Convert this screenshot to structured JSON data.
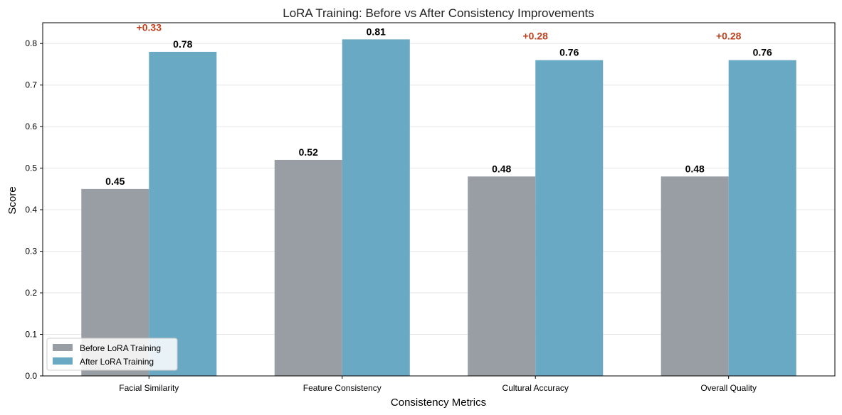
{
  "chart_data": {
    "type": "bar",
    "title": "LoRA Training: Before vs After Consistency Improvements",
    "xlabel": "Consistency Metrics",
    "ylabel": "Score",
    "ylim": [
      0,
      0.85
    ],
    "yticks": [
      0.0,
      0.1,
      0.2,
      0.3,
      0.4,
      0.5,
      0.6,
      0.7,
      0.8
    ],
    "categories": [
      "Facial Similarity",
      "Feature Consistency",
      "Cultural Accuracy",
      "Overall Quality"
    ],
    "series": [
      {
        "name": "Before LoRA Training",
        "color": "#999da4",
        "values": [
          0.45,
          0.52,
          0.48,
          0.48
        ],
        "labels": [
          "0.45",
          "0.52",
          "0.48",
          "0.48"
        ]
      },
      {
        "name": "After LoRA Training",
        "color": "#6aa9c3",
        "values": [
          0.78,
          0.81,
          0.76,
          0.76
        ],
        "labels": [
          "0.78",
          "0.81",
          "0.76",
          "0.76"
        ]
      }
    ],
    "improvements": [
      {
        "category": "Facial Similarity",
        "label": "+0.33",
        "value": 0.33
      },
      {
        "category": "Cultural Accuracy",
        "label": "+0.28",
        "value": 0.28
      },
      {
        "category": "Overall Quality",
        "label": "+0.28",
        "value": 0.28
      }
    ],
    "improvement_color": "#c0401e",
    "grid": true,
    "legend_position": "lower-left"
  }
}
